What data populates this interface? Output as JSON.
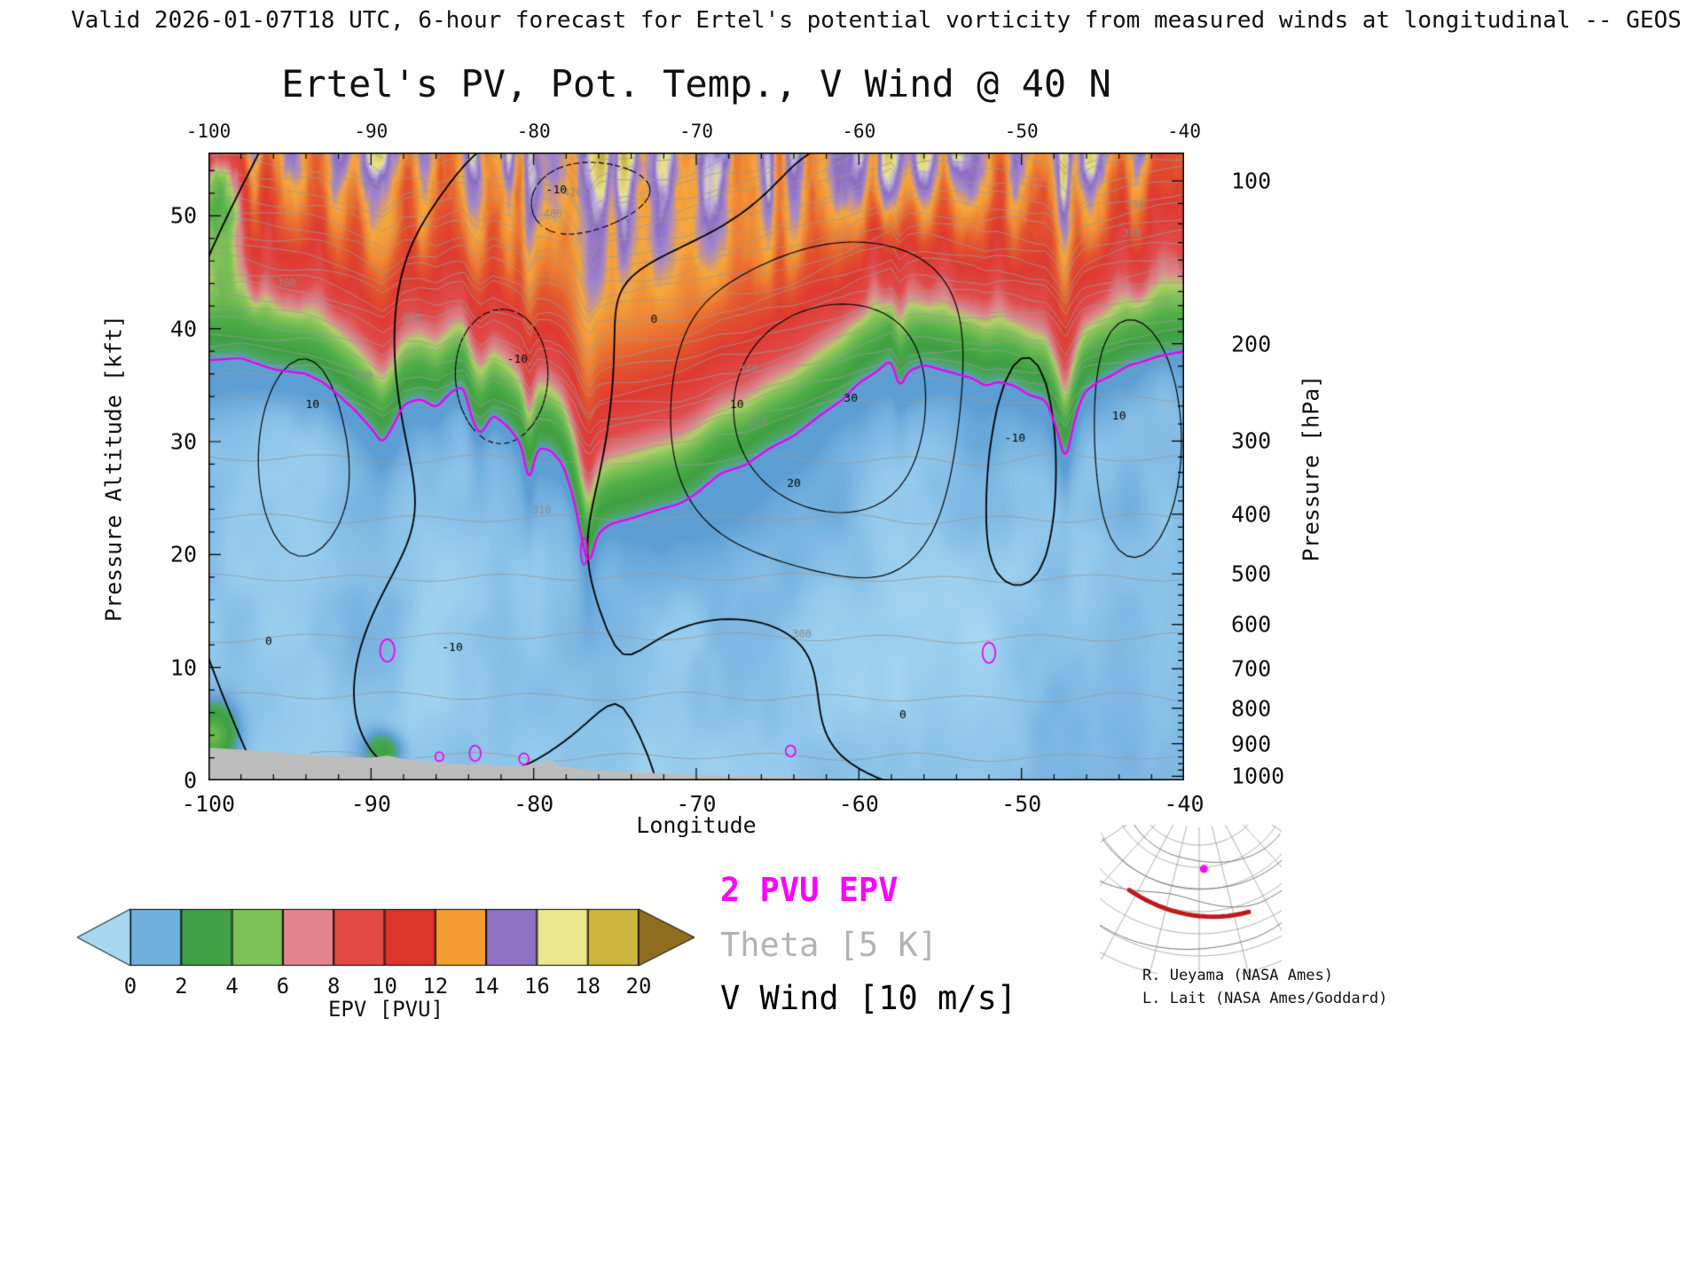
{
  "header": {
    "validity_line": "Valid 2026-01-07T18 UTC, 6-hour forecast for Ertel's potential vorticity from measured winds at longitudinal -- GEOS"
  },
  "credits": {
    "line1": "R. Ueyama (NASA Ames)",
    "line2": "L. Lait (NASA Ames/Goddard)"
  },
  "map_inset": {
    "graticule_color": "#9a9a9a",
    "coast_color": "#777777",
    "track_color": "#c01818",
    "dot_color": "#ff00ff"
  },
  "chart_data": {
    "type": "heatmap",
    "title": "Ertel's PV, Pot. Temp., V Wind @ 40 N",
    "xlabel": "Longitude",
    "ylabel_left": "Pressure Altitude [kft]",
    "ylabel_right": "Pressure [hPa]",
    "x_range": [
      -100,
      -40
    ],
    "y_range_kft": [
      0,
      55.6
    ],
    "x_ticks_major": [
      -100,
      -90,
      -80,
      -70,
      -60,
      -50,
      -40
    ],
    "x_minor_step": 2,
    "y_ticks_left": [
      0,
      10,
      20,
      30,
      40,
      50
    ],
    "y_left_minor_step": 2,
    "y_ticks_right_hpa": [
      100,
      200,
      300,
      400,
      500,
      600,
      700,
      800,
      900,
      1000
    ],
    "colorbar": {
      "label": "EPV [PVU]",
      "ticks": [
        0,
        2,
        4,
        6,
        8,
        10,
        12,
        14,
        16,
        18,
        20
      ],
      "segment_colors": [
        "#6fb0dd",
        "#3fa044",
        "#7cc257",
        "#e2858f",
        "#e34a45",
        "#dd342c",
        "#f49b33",
        "#8f72c4",
        "#eae78f",
        "#cdb53e"
      ],
      "arrow_low": "#a7d8f0",
      "arrow_high": "#8f6d1e"
    },
    "legend": [
      {
        "label": "2 PVU EPV",
        "color": "#ff00ff",
        "bold": true
      },
      {
        "label": "Theta [5 K]",
        "color": "#b3b3b3",
        "bold": false
      },
      {
        "label": "V Wind [10 m/s]",
        "color": "#000000",
        "bold": false
      }
    ],
    "tropopause_2pvu": {
      "units": "kft",
      "points": [
        [
          -100,
          37.2
        ],
        [
          -98,
          37.4
        ],
        [
          -96,
          36.4
        ],
        [
          -94,
          36.0
        ],
        [
          -93,
          35.3
        ],
        [
          -92,
          34.1
        ],
        [
          -91,
          32.8
        ],
        [
          -90,
          31.2
        ],
        [
          -89.3,
          29.8
        ],
        [
          -88.6,
          31.5
        ],
        [
          -88,
          33.3
        ],
        [
          -87,
          33.8
        ],
        [
          -86,
          33.0
        ],
        [
          -85,
          34.5
        ],
        [
          -84.3,
          34.9
        ],
        [
          -83.8,
          32.0
        ],
        [
          -83.3,
          30.5
        ],
        [
          -82.5,
          32.4
        ],
        [
          -81.5,
          31.2
        ],
        [
          -80.7,
          29.6
        ],
        [
          -80.3,
          26.0
        ],
        [
          -79.8,
          29.4
        ],
        [
          -79,
          29.3
        ],
        [
          -78.2,
          28.0
        ],
        [
          -77.5,
          24.8
        ],
        [
          -77,
          21.0
        ],
        [
          -76.6,
          18.8
        ],
        [
          -76.1,
          21.8
        ],
        [
          -75.3,
          22.7
        ],
        [
          -74,
          23.2
        ],
        [
          -72.5,
          23.9
        ],
        [
          -71,
          24.5
        ],
        [
          -70,
          25.4
        ],
        [
          -68.5,
          27.2
        ],
        [
          -67,
          27.9
        ],
        [
          -65.5,
          29.4
        ],
        [
          -64,
          30.5
        ],
        [
          -62.5,
          32.2
        ],
        [
          -61,
          33.7
        ],
        [
          -60,
          35.2
        ],
        [
          -59,
          36.1
        ],
        [
          -58,
          37.3
        ],
        [
          -57.5,
          34.6
        ],
        [
          -57,
          36.2
        ],
        [
          -56,
          36.8
        ],
        [
          -55,
          36.4
        ],
        [
          -54,
          36.0
        ],
        [
          -53,
          35.6
        ],
        [
          -52.2,
          34.9
        ],
        [
          -51.5,
          35.3
        ],
        [
          -50.5,
          35.0
        ],
        [
          -49.5,
          34.1
        ],
        [
          -48.5,
          33.7
        ],
        [
          -47.8,
          31.0
        ],
        [
          -47.3,
          28.0
        ],
        [
          -46.8,
          31.6
        ],
        [
          -46.2,
          34.3
        ],
        [
          -45.3,
          35.3
        ],
        [
          -44.5,
          35.8
        ],
        [
          -43.5,
          36.7
        ],
        [
          -42.5,
          37.1
        ],
        [
          -41.5,
          37.6
        ],
        [
          -40,
          38.0
        ]
      ]
    },
    "terrain": {
      "units": "kft",
      "color": "#bdbdbd",
      "points": [
        [
          -100,
          2.9
        ],
        [
          -98,
          2.7
        ],
        [
          -96,
          2.5
        ],
        [
          -94,
          2.3
        ],
        [
          -92,
          2.1
        ],
        [
          -90,
          2.0
        ],
        [
          -89,
          2.2
        ],
        [
          -88,
          1.9
        ],
        [
          -86,
          1.6
        ],
        [
          -84,
          1.4
        ],
        [
          -83,
          1.5
        ],
        [
          -82,
          1.3
        ],
        [
          -81,
          1.2
        ],
        [
          -80,
          1.5
        ],
        [
          -79,
          1.8
        ],
        [
          -78.5,
          1.3
        ],
        [
          -77,
          1.0
        ],
        [
          -76,
          0.9
        ],
        [
          -75,
          0.8
        ],
        [
          -74,
          0.7
        ],
        [
          -72,
          0.6
        ],
        [
          -70,
          0.5
        ],
        [
          -68,
          0.4
        ],
        [
          -66,
          0.35
        ],
        [
          -64,
          0.3
        ],
        [
          -62,
          0.2
        ],
        [
          -61,
          0.1
        ],
        [
          -60,
          0.02
        ],
        [
          -40,
          0.0
        ]
      ]
    },
    "theta": {
      "surface_K": 288,
      "trop_lapse_K_per_kft": 0.95,
      "strat_extra_K_per_kft": 3.61,
      "contour_interval_K": 5,
      "level_min_K": 290,
      "level_max_K": 455,
      "line_color": "#999999",
      "labels": [
        {
          "K": 420,
          "lon": -77.6
        },
        {
          "K": 400,
          "lon": -78.8
        },
        {
          "K": 410,
          "lon": -42.9
        },
        {
          "K": 390,
          "lon": -43.0
        },
        {
          "K": 380,
          "lon": -43.2
        },
        {
          "K": 360,
          "lon": -95.2
        },
        {
          "K": 350,
          "lon": -87.5
        },
        {
          "K": 340,
          "lon": -66.8
        },
        {
          "K": 330,
          "lon": -90.5
        },
        {
          "K": 320,
          "lon": -66.2
        },
        {
          "K": 310,
          "lon": -79.5
        },
        {
          "K": 300,
          "lon": -63.5
        }
      ]
    },
    "wind": {
      "contour_interval_ms": 10,
      "levels": [
        -40,
        -30,
        -20,
        -10,
        0,
        10,
        20,
        30,
        40
      ],
      "base": {
        "amp": -2.5,
        "node_lon": -72,
        "half_wave_deg": 21
      },
      "centers": [
        {
          "lon": -94,
          "kft": 28,
          "amp": 14,
          "sx": 4.5,
          "sz": 14
        },
        {
          "lon": -82,
          "kft": 36,
          "amp": -16,
          "sx": 5,
          "sz": 9
        },
        {
          "lon": -85,
          "kft": 12,
          "amp": -12,
          "sx": 5,
          "sz": 7
        },
        {
          "lon": -61,
          "kft": 33,
          "amp": 32,
          "sx": 7.5,
          "sz": 11
        },
        {
          "lon": -50,
          "kft": 30,
          "amp": -18,
          "sx": 3.5,
          "sz": 9
        },
        {
          "lon": -44,
          "kft": 30,
          "amp": 14,
          "sx": 3.5,
          "sz": 10
        },
        {
          "lon": -73,
          "kft": 52,
          "amp": -10,
          "sx": 5,
          "sz": 4
        },
        {
          "lon": -78,
          "kft": 52,
          "amp": -8,
          "sx": 3,
          "sz": 3.5
        },
        {
          "lon": -56,
          "kft": 8,
          "amp": 8,
          "sx": 6,
          "sz": 5
        },
        {
          "lon": -66,
          "kft": 10,
          "amp": -6,
          "sx": 4,
          "sz": 5
        }
      ],
      "labels": [
        {
          "text": "10",
          "lon": -93.6,
          "kft": 33
        },
        {
          "text": "-10",
          "lon": -81.0,
          "kft": 37
        },
        {
          "text": "-10",
          "lon": -85.0,
          "kft": 11.5
        },
        {
          "text": "0",
          "lon": -72.6,
          "kft": 40.5
        },
        {
          "text": "10",
          "lon": -67.5,
          "kft": 33
        },
        {
          "text": "30",
          "lon": -60.5,
          "kft": 33.5
        },
        {
          "text": "20",
          "lon": -64.0,
          "kft": 26
        },
        {
          "text": "0",
          "lon": -57.3,
          "kft": 5.5
        },
        {
          "text": "-10",
          "lon": -50.4,
          "kft": 30
        },
        {
          "text": "10",
          "lon": -44.0,
          "kft": 32
        },
        {
          "text": "0",
          "lon": -96.3,
          "kft": 12
        },
        {
          "text": "-10",
          "lon": -78.6,
          "kft": 52
        }
      ]
    },
    "epv_features": {
      "tropopause_line_color": "#ee00ee",
      "fill_color_stops": [
        [
          0,
          "#bfe6f7"
        ],
        [
          1.0,
          "#93c9ec"
        ],
        [
          2.0,
          "#5b9dd4"
        ],
        [
          2.6,
          "#4ca75f"
        ],
        [
          3.5,
          "#3fa041"
        ],
        [
          4.8,
          "#52b04a"
        ],
        [
          5.8,
          "#85c457"
        ],
        [
          6.3,
          "#b3cf6b"
        ],
        [
          6.9,
          "#dd8890"
        ],
        [
          8.0,
          "#e14b4b"
        ],
        [
          9.8,
          "#df3a31"
        ],
        [
          11.3,
          "#e4562d"
        ],
        [
          12.6,
          "#f08433"
        ],
        [
          13.8,
          "#f6a83c"
        ],
        [
          14.9,
          "#a586cf"
        ],
        [
          15.9,
          "#8a6cc2"
        ],
        [
          16.7,
          "#c0b2dd"
        ],
        [
          17.3,
          "#e9e58d"
        ],
        [
          19.0,
          "#cfb645"
        ],
        [
          20.5,
          "#a8862c"
        ],
        [
          22.0,
          "#8f6d1e"
        ]
      ],
      "upper_anomalies": [
        {
          "lon": -57,
          "kft": 55,
          "amp": 3.4,
          "sx": 2.2,
          "sz": 3.5
        },
        {
          "lon": -74.8,
          "kft": 55.5,
          "amp": 2.8,
          "sx": 1.8,
          "sz": 3
        },
        {
          "lon": -46.5,
          "kft": 55.5,
          "amp": 2.2,
          "sx": 1.5,
          "sz": 3
        },
        {
          "lon": -99.6,
          "kft": 52,
          "amp": -6.5,
          "sx": 1.1,
          "sz": 4.5
        },
        {
          "lon": -90.5,
          "kft": 55.5,
          "amp": 1.5,
          "sx": 1.2,
          "sz": 2
        }
      ],
      "surface_patches": [
        {
          "lon": -99.7,
          "kft": 4,
          "amp": 4.2,
          "sx": 0.9,
          "sz": 1.8
        },
        {
          "lon": -89.3,
          "kft": 2.6,
          "amp": 2.4,
          "sx": 0.8,
          "sz": 1.2
        }
      ],
      "magenta_blobs": [
        {
          "lon": -89,
          "kft": 11.5,
          "rx": 0.45,
          "ry": 1.0
        },
        {
          "lon": -52,
          "kft": 11.3,
          "rx": 0.4,
          "ry": 0.9
        },
        {
          "lon": -83.6,
          "kft": 2.4,
          "rx": 0.35,
          "ry": 0.7
        },
        {
          "lon": -80.6,
          "kft": 1.9,
          "rx": 0.3,
          "ry": 0.5
        },
        {
          "lon": -64.2,
          "kft": 2.6,
          "rx": 0.3,
          "ry": 0.5
        },
        {
          "lon": -76.9,
          "kft": 20.3,
          "rx": 0.2,
          "ry": 1.2
        },
        {
          "lon": -85.8,
          "kft": 2.1,
          "rx": 0.25,
          "ry": 0.4
        }
      ]
    }
  }
}
